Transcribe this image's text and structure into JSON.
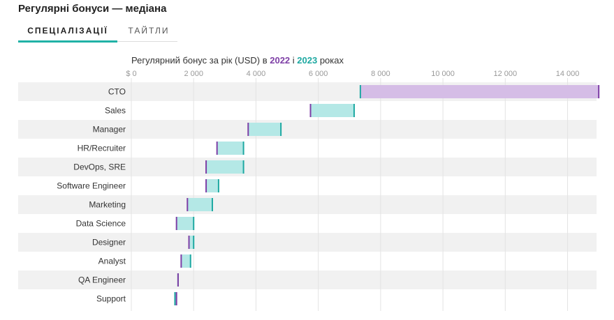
{
  "page": {
    "title": "Регулярні бонуси — медіана",
    "tabs": [
      {
        "label": "СПЕЦІАЛІЗАЦІЇ",
        "active": true
      },
      {
        "label": "ТАЙТЛИ",
        "active": false
      }
    ]
  },
  "chart_data": {
    "type": "bar",
    "subtitle_prefix": "Регулярний бонус за рік (USD) в ",
    "subtitle_mid": " і ",
    "subtitle_suffix": " роках",
    "series": [
      {
        "name": "2022",
        "color": "#7e3fa6",
        "values": [
          15000,
          5750,
          3750,
          2750,
          2400,
          2400,
          1800,
          1450,
          1850,
          1600,
          1500,
          1450
        ]
      },
      {
        "name": "2023",
        "color": "#1fa9a2",
        "values": [
          7350,
          7150,
          4800,
          3600,
          3600,
          2800,
          2600,
          2000,
          2000,
          1900,
          1500,
          1400
        ]
      }
    ],
    "categories": [
      "CTO",
      "Sales",
      "Manager",
      "HR/Recruiter",
      "DevOps, SRE",
      "Software Engineer",
      "Marketing",
      "Data Science",
      "Designer",
      "Analyst",
      "QA Engineer",
      "Support"
    ],
    "x_ticks": [
      0,
      2000,
      4000,
      6000,
      8000,
      10000,
      12000,
      14000
    ],
    "x_tick_labels": [
      "$ 0",
      "2 000",
      "4 000",
      "6 000",
      "8 000",
      "10 000",
      "12 000",
      "14 000"
    ],
    "xlim": [
      0,
      15400
    ],
    "colors": {
      "increase_fill": "#b4e8e6",
      "decrease_fill": "#d5bde6",
      "row_band": "#f1f1f1",
      "grid": "#e3e3e3",
      "accent": "#20b2a6"
    }
  }
}
